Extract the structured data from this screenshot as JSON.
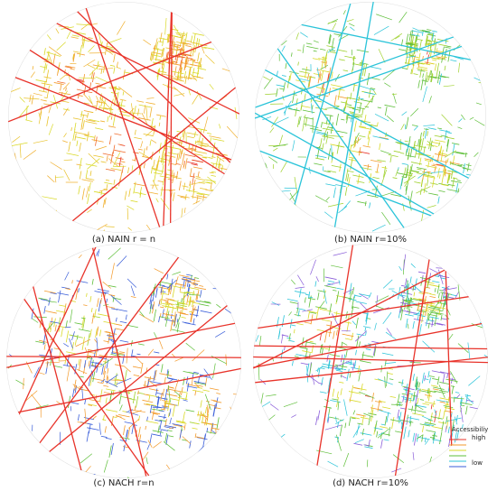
{
  "panels": [
    {
      "caption": "(a) NAIN r = n"
    },
    {
      "caption": "(b) NAIN r=10%"
    },
    {
      "caption": "(c) NACH r=n"
    },
    {
      "caption": "(d) NACH r=10%"
    }
  ],
  "legend": {
    "title": "Accessibiliy",
    "high": "high",
    "low": "low"
  }
}
